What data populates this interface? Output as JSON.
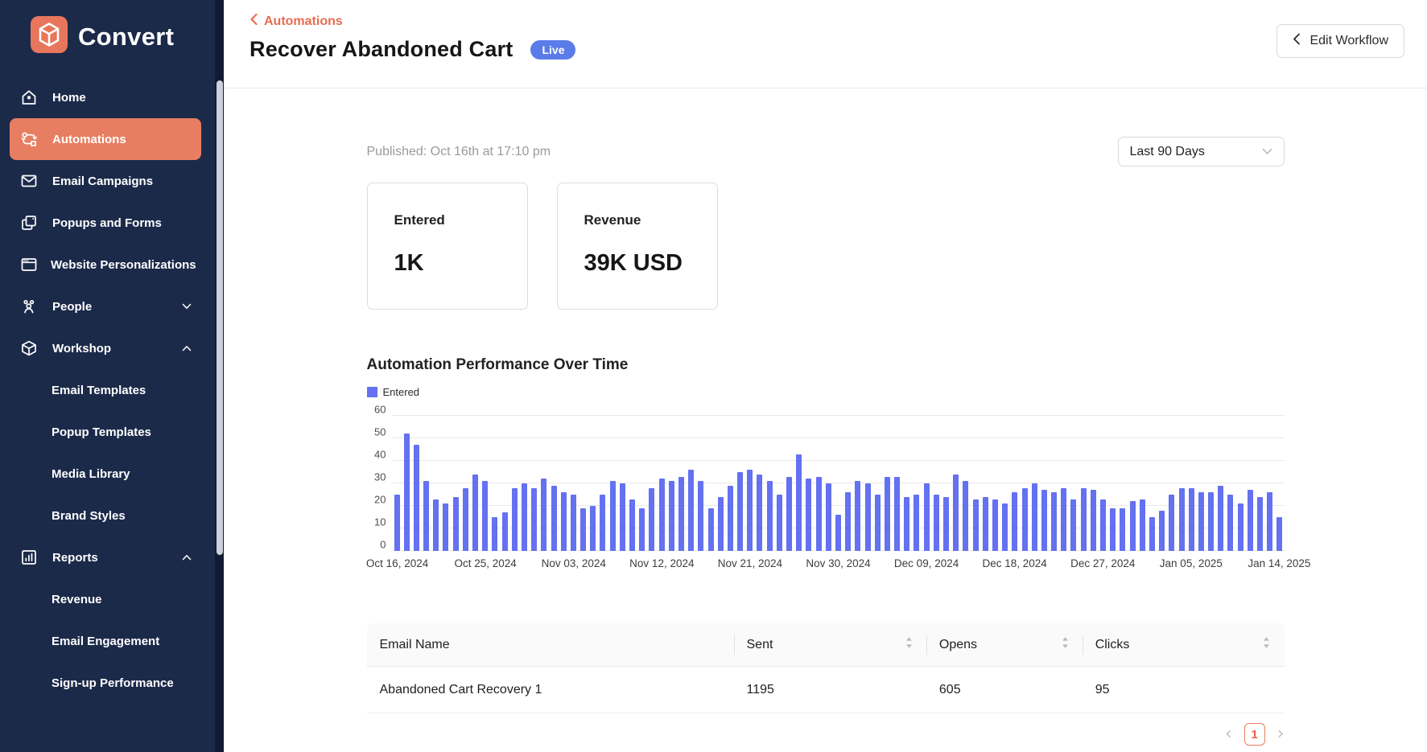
{
  "sidebar": {
    "logo_text": "Convert",
    "items": [
      {
        "label": "Home",
        "icon": "home"
      },
      {
        "label": "Automations",
        "icon": "automations",
        "active": true
      },
      {
        "label": "Email Campaigns",
        "icon": "email"
      },
      {
        "label": "Popups and Forms",
        "icon": "popups"
      },
      {
        "label": "Website Personalizations",
        "icon": "website"
      },
      {
        "label": "People",
        "icon": "people",
        "chevron": "down"
      },
      {
        "label": "Workshop",
        "icon": "workshop",
        "chevron": "up"
      },
      {
        "label": "Email Templates",
        "indent": true
      },
      {
        "label": "Popup Templates",
        "indent": true
      },
      {
        "label": "Media Library",
        "indent": true
      },
      {
        "label": "Brand Styles",
        "indent": true
      },
      {
        "label": "Reports",
        "icon": "reports",
        "chevron": "up"
      },
      {
        "label": "Revenue",
        "indent": true
      },
      {
        "label": "Email Engagement",
        "indent": true
      },
      {
        "label": "Sign-up Performance",
        "indent": true
      }
    ]
  },
  "header": {
    "breadcrumb": "Automations",
    "title": "Recover Abandoned Cart",
    "status_badge": "Live",
    "edit_button_label": "Edit Workflow"
  },
  "meta": {
    "published": "Published: Oct 16th at 17:10 pm",
    "date_range": "Last 90 Days"
  },
  "stats": [
    {
      "label": "Entered",
      "value": "1K"
    },
    {
      "label": "Revenue",
      "value": "39K USD"
    }
  ],
  "chart_data": {
    "type": "bar",
    "title": "Automation Performance Over Time",
    "legend": [
      "Entered"
    ],
    "series": [
      {
        "name": "Entered",
        "values": [
          25,
          52,
          47,
          31,
          23,
          21,
          24,
          28,
          34,
          31,
          15,
          17,
          28,
          30,
          28,
          32,
          29,
          26,
          25,
          19,
          20,
          25,
          31,
          30,
          23,
          19,
          28,
          32,
          31,
          33,
          36,
          31,
          19,
          24,
          29,
          35,
          36,
          34,
          31,
          25,
          33,
          43,
          32,
          33,
          30,
          16,
          26,
          31,
          30,
          25,
          33,
          33,
          24,
          25,
          30,
          25,
          24,
          34,
          31,
          23,
          24,
          23,
          21,
          26,
          28,
          30,
          27,
          26,
          28,
          23,
          28,
          27,
          23,
          19,
          19,
          22,
          23,
          15,
          18,
          25,
          28,
          28,
          26,
          26,
          29,
          25,
          21,
          27,
          24,
          26,
          15
        ]
      }
    ],
    "x_start": "Oct 16, 2024",
    "x_end": "Jan 14, 2025",
    "x_tick_labels": [
      "Oct 16, 2024",
      "Oct 25, 2024",
      "Nov 03, 2024",
      "Nov 12, 2024",
      "Nov 21, 2024",
      "Nov 30, 2024",
      "Dec 09, 2024",
      "Dec 18, 2024",
      "Dec 27, 2024",
      "Jan 05, 2025",
      "Jan 14, 2025"
    ],
    "x_tick_every": 9,
    "y_ticks": [
      0,
      10,
      20,
      30,
      40,
      50,
      60
    ],
    "ylim": [
      0,
      60
    ],
    "grid": true,
    "legend_position": "top-left",
    "bar_color": "#6471f0"
  },
  "table": {
    "columns": [
      {
        "label": "Email Name",
        "sortable": false
      },
      {
        "label": "Sent",
        "sortable": true
      },
      {
        "label": "Opens",
        "sortable": true
      },
      {
        "label": "Clicks",
        "sortable": true
      }
    ],
    "rows": [
      [
        "Abandoned Cart Recovery 1",
        "1195",
        "605",
        "95"
      ]
    ]
  },
  "pagination": {
    "prev": "‹",
    "current_page": "1",
    "next": "›"
  },
  "colors": {
    "sidebar_navy": "#1c2a4a",
    "accent_coral": "#e87e61",
    "breadcrumb_coral": "#e96c50",
    "badge_blue": "#5b7ce8",
    "bar_blue": "#6471f0"
  }
}
